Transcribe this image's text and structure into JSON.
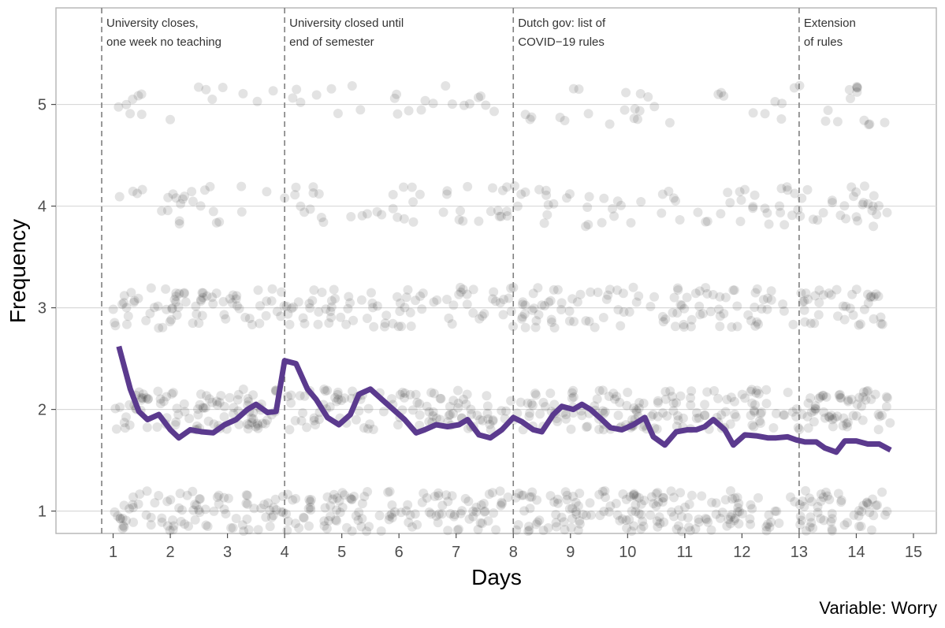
{
  "chart_data": {
    "type": "scatter",
    "xlabel": "Days",
    "ylabel": "Frequency",
    "caption": "Variable: Worry",
    "xlim": [
      0.0,
      15.4
    ],
    "ylim": [
      0.78,
      5.95
    ],
    "x_ticks": [
      1,
      2,
      3,
      4,
      5,
      6,
      7,
      8,
      9,
      10,
      11,
      12,
      13,
      14,
      15
    ],
    "y_ticks": [
      1,
      2,
      3,
      4,
      5
    ],
    "grid": true,
    "colors": {
      "line": "#5b3a8e",
      "points": "#000000",
      "grid": "#d9d9d9",
      "panel_border": "#b3b3b3",
      "vline": "#7f7f7f"
    },
    "events": [
      {
        "x": 0.8,
        "lines": [
          "University closes,",
          "one week no teaching"
        ]
      },
      {
        "x": 4.0,
        "lines": [
          "University closed until",
          "end of semester"
        ]
      },
      {
        "x": 8.0,
        "lines": [
          "Dutch gov: list of",
          "COVID−19 rules"
        ]
      },
      {
        "x": 13.0,
        "lines": [
          "Extension",
          "of rules"
        ]
      }
    ],
    "series": [
      {
        "type": "line",
        "x": [
          1.1,
          1.3,
          1.45,
          1.6,
          1.8,
          2.0,
          2.15,
          2.35,
          2.55,
          2.75,
          2.95,
          3.15,
          3.35,
          3.5,
          3.7,
          3.85,
          4.0,
          4.2,
          4.4,
          4.55,
          4.75,
          4.95,
          5.15,
          5.3,
          5.5,
          5.7,
          5.9,
          6.1,
          6.3,
          6.45,
          6.65,
          6.85,
          7.05,
          7.2,
          7.4,
          7.6,
          7.8,
          8.0,
          8.15,
          8.35,
          8.5,
          8.7,
          8.85,
          9.05,
          9.2,
          9.35,
          9.55,
          9.7,
          9.9,
          10.1,
          10.3,
          10.45,
          10.65,
          10.85,
          11.05,
          11.2,
          11.35,
          11.5,
          11.7,
          11.85,
          12.05,
          12.25,
          12.45,
          12.6,
          12.8,
          12.95,
          13.1,
          13.3,
          13.45,
          13.65,
          13.8,
          14.0,
          14.2,
          14.4,
          14.6
        ],
        "y": [
          2.62,
          2.2,
          1.98,
          1.9,
          1.95,
          1.8,
          1.72,
          1.8,
          1.78,
          1.77,
          1.85,
          1.9,
          2.0,
          2.05,
          1.97,
          1.98,
          2.48,
          2.45,
          2.2,
          2.1,
          1.92,
          1.85,
          1.95,
          2.15,
          2.2,
          2.1,
          2.0,
          1.9,
          1.77,
          1.8,
          1.85,
          1.83,
          1.85,
          1.9,
          1.75,
          1.72,
          1.8,
          1.92,
          1.88,
          1.8,
          1.78,
          1.95,
          2.03,
          2.0,
          2.05,
          2.0,
          1.9,
          1.82,
          1.8,
          1.85,
          1.92,
          1.73,
          1.65,
          1.78,
          1.8,
          1.8,
          1.83,
          1.9,
          1.8,
          1.65,
          1.75,
          1.74,
          1.72,
          1.72,
          1.73,
          1.7,
          1.68,
          1.68,
          1.62,
          1.58,
          1.69,
          1.69,
          1.66,
          1.66,
          1.6
        ]
      }
    ],
    "jitter_points": {
      "description": "individual responses jittered around each integer level",
      "levels": [
        1,
        2,
        3,
        4,
        5
      ],
      "counts": [
        420,
        420,
        300,
        150,
        80
      ],
      "x_range": [
        1.0,
        14.6
      ]
    }
  }
}
